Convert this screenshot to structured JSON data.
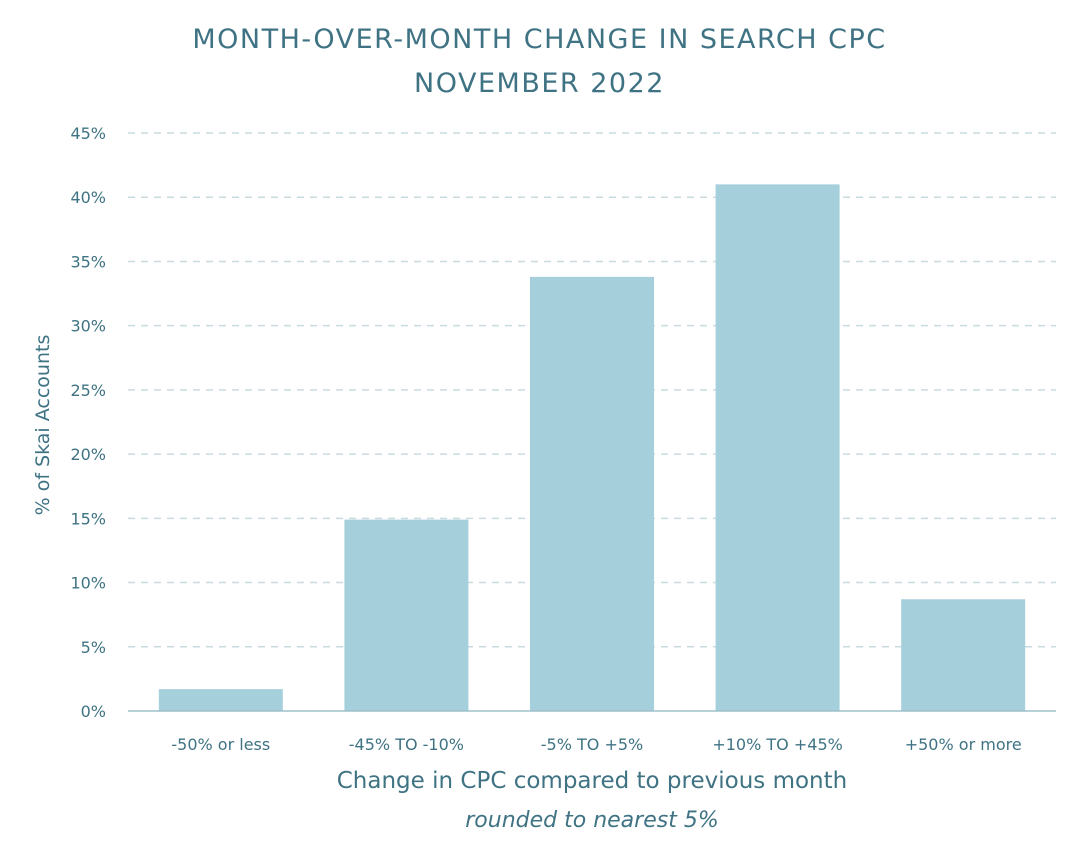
{
  "chart_data": {
    "type": "bar",
    "title": "MONTH-OVER-MONTH CHANGE IN SEARCH CPC",
    "subtitle": "NOVEMBER 2022",
    "xlabel": "Change in CPC compared to previous month",
    "xlabel_note": "rounded to nearest 5%",
    "ylabel": "% of Skai Accounts",
    "categories": [
      "-50% or less",
      "-45% TO -10%",
      "-5% TO +5%",
      "+10% TO +45%",
      "+50% or more"
    ],
    "values": [
      1.7,
      14.9,
      33.8,
      41.0,
      8.7
    ],
    "ylim": [
      0,
      45
    ],
    "yticks": [
      "0%",
      "5%",
      "10%",
      "15%",
      "20%",
      "25%",
      "30%",
      "35%",
      "40%",
      "45%"
    ],
    "grid": true,
    "legend": "none",
    "colors": {
      "bar": "#a6cfdc",
      "grid": "#c9dbe0",
      "text": "#3f7384",
      "axis": "#9fbfca"
    }
  }
}
